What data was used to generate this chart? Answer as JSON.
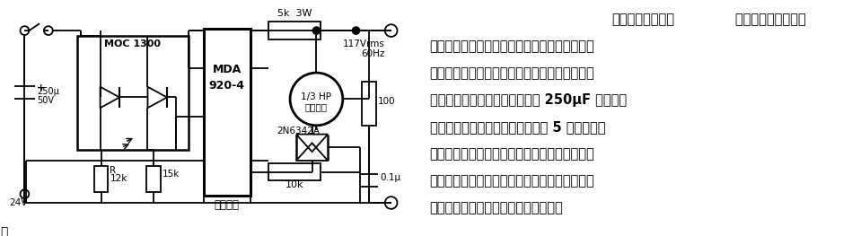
{
  "bg_color": "#ffffff",
  "description_line1_bold": "固态断路延迟电路",
  "description_line1_rest": "   当开关闭合后，光电",
  "description_lines": [
    "耦合器发光二极管导通发光，光可控硅和二极管",
    "桥路导通并触发双向可控硅，从而接通交流电机",
    "运转。当断开按钮开关时，由于 250μF 电容器的",
    "储能作用，可以使双向可控硅延迟 5 秒截止。这",
    "种断路延时电路用于发出停止运转信号后，机器",
    "需要延时一定时间的场合。例如，化工厂的泵用",
    "电机必须延时足够的时间以清除管道。"
  ],
  "font_size_text": 10.5,
  "line_color": "#000000",
  "text_color": "#000000",
  "circuit_bg": "#ffffff"
}
